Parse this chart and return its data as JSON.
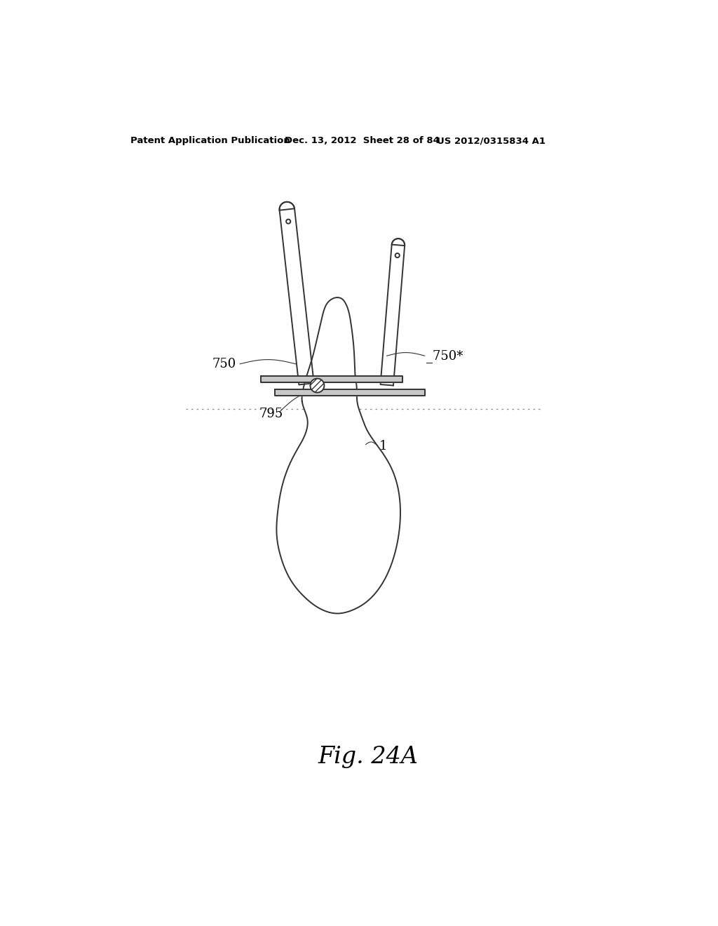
{
  "bg_color": "#ffffff",
  "header_left": "Patent Application Publication",
  "header_mid": "Dec. 13, 2012  Sheet 28 of 84",
  "header_right": "US 2012/0315834 A1",
  "fig_label": "Fig. 24A",
  "label_750_left": "750",
  "label_750_right": "750*",
  "label_795": "795",
  "label_1": "1",
  "line_color": "#333333"
}
